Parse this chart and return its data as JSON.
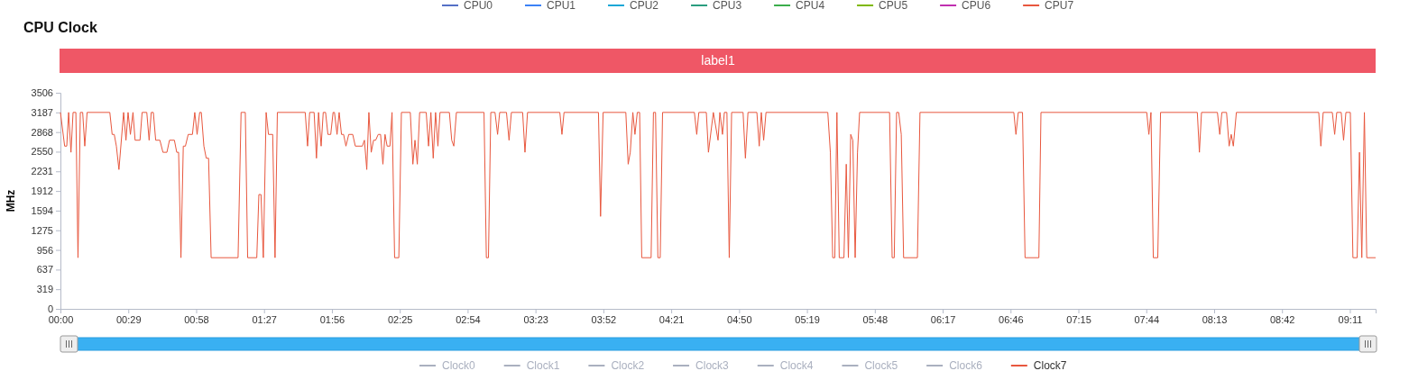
{
  "chart_data": {
    "type": "line",
    "title": "CPU Clock",
    "ylabel": "MHz",
    "annotations": [
      "label1",
      "Clock0",
      "Clock1",
      "Clock2",
      "Clock3",
      "Clock4",
      "Clock5",
      "Clock6",
      "Clock7"
    ],
    "xlim": [
      0,
      562
    ],
    "xticks": [
      {
        "value": 0,
        "label": "00:00"
      },
      {
        "value": 29,
        "label": "00:29"
      },
      {
        "value": 58,
        "label": "00:58"
      },
      {
        "value": 87,
        "label": "01:27"
      },
      {
        "value": 116,
        "label": "01:56"
      },
      {
        "value": 145,
        "label": "02:25"
      },
      {
        "value": 174,
        "label": "02:54"
      },
      {
        "value": 203,
        "label": "03:23"
      },
      {
        "value": 232,
        "label": "03:52"
      },
      {
        "value": 261,
        "label": "04:21"
      },
      {
        "value": 290,
        "label": "04:50"
      },
      {
        "value": 319,
        "label": "05:19"
      },
      {
        "value": 348,
        "label": "05:48"
      },
      {
        "value": 377,
        "label": "06:17"
      },
      {
        "value": 406,
        "label": "06:46"
      },
      {
        "value": 435,
        "label": "07:15"
      },
      {
        "value": 464,
        "label": "07:44"
      },
      {
        "value": 493,
        "label": "08:13"
      },
      {
        "value": 522,
        "label": "08:42"
      },
      {
        "value": 551,
        "label": "09:11"
      }
    ],
    "ylim": [
      0,
      3506
    ],
    "yticks": [
      0,
      319,
      637,
      956,
      1275,
      1594,
      1912,
      2231,
      2550,
      2868,
      3187,
      3506
    ],
    "grid": false,
    "legend": "top",
    "marker": "none",
    "line_style": "solid",
    "series": [
      {
        "name": "CPU0",
        "color": "#5470c6"
      },
      {
        "name": "CPU1",
        "color": "#3b82f6"
      },
      {
        "name": "CPU2",
        "color": "#1ba7d6"
      },
      {
        "name": "CPU3",
        "color": "#2a9d7f"
      },
      {
        "name": "CPU4",
        "color": "#3bad4b"
      },
      {
        "name": "CPU5",
        "color": "#7fb800"
      },
      {
        "name": "CPU6",
        "color": "#c02fb0"
      },
      {
        "name": "CPU7",
        "color": "#e8573e",
        "x": [
          0,
          1.8,
          2.7,
          3.5,
          4.5,
          5.4,
          6.6,
          7.5,
          8.5,
          9.5,
          10.4,
          11.4,
          21.1,
          22.1,
          23.0,
          23.9,
          25.0,
          27.0,
          28.0,
          28.9,
          29.9,
          31.0,
          31.9,
          34.0,
          34.9,
          36.9,
          37.9,
          38.8,
          39.7,
          40.7,
          42.5,
          43.8,
          45.5,
          46.6,
          48.7,
          49.7,
          50.5,
          51.5,
          52.5,
          53.4,
          54.6,
          56.4,
          57.4,
          58.4,
          59.5,
          60.2,
          61.3,
          62.3,
          63.3,
          64.4,
          75.9,
          77.2,
          79.0,
          80.0,
          83.9,
          84.8,
          85.7,
          86.7,
          87.9,
          88.9,
          90.7,
          91.7,
          92.7,
          104.6,
          105.6,
          106.5,
          108.4,
          109.4,
          110.3,
          111.4,
          112.3,
          113.3,
          114.3,
          115.5,
          116.5,
          117.1,
          118.2,
          119.1,
          120.1,
          121.0,
          122.0,
          123.2,
          124.9,
          126.0,
          129.0,
          129.9,
          130.9,
          131.8,
          132.8,
          133.8,
          134.7,
          135.8,
          136.8,
          137.8,
          138.7,
          139.6,
          140.8,
          141.7,
          142.8,
          144.6,
          145.7,
          149.5,
          150.6,
          151.5,
          152.5,
          153.5,
          156.3,
          157.3,
          158.3,
          159.3,
          160.3,
          161.3,
          162.2,
          166.2,
          167.2,
          168.1,
          169.2,
          181.0,
          182.0,
          182.9,
          183.9,
          185.7,
          186.8,
          187.7,
          190.6,
          191.7,
          192.7,
          197.5,
          198.5,
          199.6,
          213.4,
          214.3,
          215.2,
          229.9,
          230.8,
          231.9,
          241.6,
          242.6,
          243.5,
          244.6,
          245.5,
          246.5,
          247.5,
          248.4,
          252.4,
          253.4,
          254.3,
          255.3,
          256.3,
          257.3,
          270.9,
          271.9,
          272.8,
          276.0,
          276.9,
          279.0,
          281.0,
          281.8,
          282.9,
          283.7,
          284.8,
          285.8,
          286.8,
          291.7,
          292.7,
          293.8,
          297.6,
          298.6,
          299.5,
          300.5,
          301.5,
          327.9,
          329.0,
          330.0,
          330.9,
          331.8,
          332.8,
          334.8,
          335.8,
          336.7,
          337.7,
          338.6,
          339.6,
          340.6,
          341.5,
          354.3,
          355.4,
          356.3,
          357.3,
          358.2,
          359.3,
          360.3,
          366.2,
          367.3,
          407.4,
          408.3,
          409.3,
          411.1,
          412.2,
          418.1,
          419.0,
          464.2,
          465.1,
          466.0,
          467.0,
          468.9,
          470.1,
          485.8,
          486.7,
          487.6,
          494.4,
          495.4,
          496.3,
          498.3,
          499.4,
          500.3,
          501.2,
          502.5,
          537.7,
          538.6,
          539.6,
          543.5,
          544.5,
          545.4,
          547.3,
          548.3,
          549.3,
          551.2,
          552.3,
          554.1,
          555.1,
          556.1,
          557.2,
          558.2,
          562
        ],
        "values": [
          3187,
          2640,
          2640,
          3187,
          2540,
          3187,
          3187,
          830,
          3187,
          3187,
          2640,
          3187,
          3187,
          2830,
          2830,
          2640,
          2260,
          3187,
          2736,
          3187,
          2830,
          3187,
          2736,
          2736,
          3187,
          3187,
          2736,
          3187,
          3187,
          2736,
          2736,
          2540,
          2540,
          2736,
          2736,
          2540,
          2540,
          830,
          2640,
          2640,
          2830,
          2830,
          3187,
          2830,
          3187,
          3187,
          2640,
          2444,
          2444,
          830,
          830,
          3187,
          3187,
          830,
          830,
          1855,
          1855,
          830,
          3187,
          2830,
          2830,
          830,
          3187,
          3187,
          2640,
          3187,
          3187,
          2444,
          3187,
          2640,
          3187,
          3187,
          2830,
          2830,
          3187,
          3187,
          2830,
          3187,
          2830,
          2830,
          2640,
          2830,
          2830,
          2640,
          2640,
          2736,
          2260,
          3187,
          2540,
          2736,
          2736,
          2830,
          2830,
          2347,
          2830,
          2640,
          2640,
          3187,
          830,
          830,
          3187,
          3187,
          2347,
          2736,
          2347,
          3187,
          3187,
          2640,
          3187,
          2444,
          3187,
          2640,
          3187,
          3187,
          2736,
          2640,
          3187,
          3187,
          830,
          830,
          3187,
          3187,
          2830,
          3187,
          3187,
          2736,
          3187,
          3187,
          2540,
          3187,
          3187,
          2830,
          3187,
          3187,
          1500,
          3187,
          3187,
          2347,
          2540,
          3187,
          2830,
          3187,
          3187,
          830,
          830,
          3187,
          3187,
          830,
          830,
          3187,
          3187,
          2830,
          3187,
          3187,
          2540,
          3187,
          2736,
          3187,
          2830,
          3187,
          3187,
          830,
          3187,
          3187,
          2444,
          3187,
          3187,
          2640,
          3187,
          2736,
          3187,
          3187,
          2540,
          830,
          830,
          3187,
          830,
          830,
          2347,
          830,
          2830,
          2736,
          830,
          2540,
          3187,
          3187,
          830,
          830,
          3187,
          3187,
          2830,
          830,
          830,
          3187,
          3187,
          2830,
          3187,
          3187,
          830,
          830,
          3187,
          3187,
          2830,
          3187,
          830,
          830,
          3187,
          3187,
          2540,
          3187,
          3187,
          2830,
          3187,
          3187,
          2640,
          2830,
          2640,
          3187,
          3187,
          2640,
          3187,
          3187,
          2830,
          3187,
          3187,
          2736,
          3187,
          3187,
          830,
          830,
          2540,
          830,
          3187,
          830,
          830
        ]
      }
    ]
  }
}
